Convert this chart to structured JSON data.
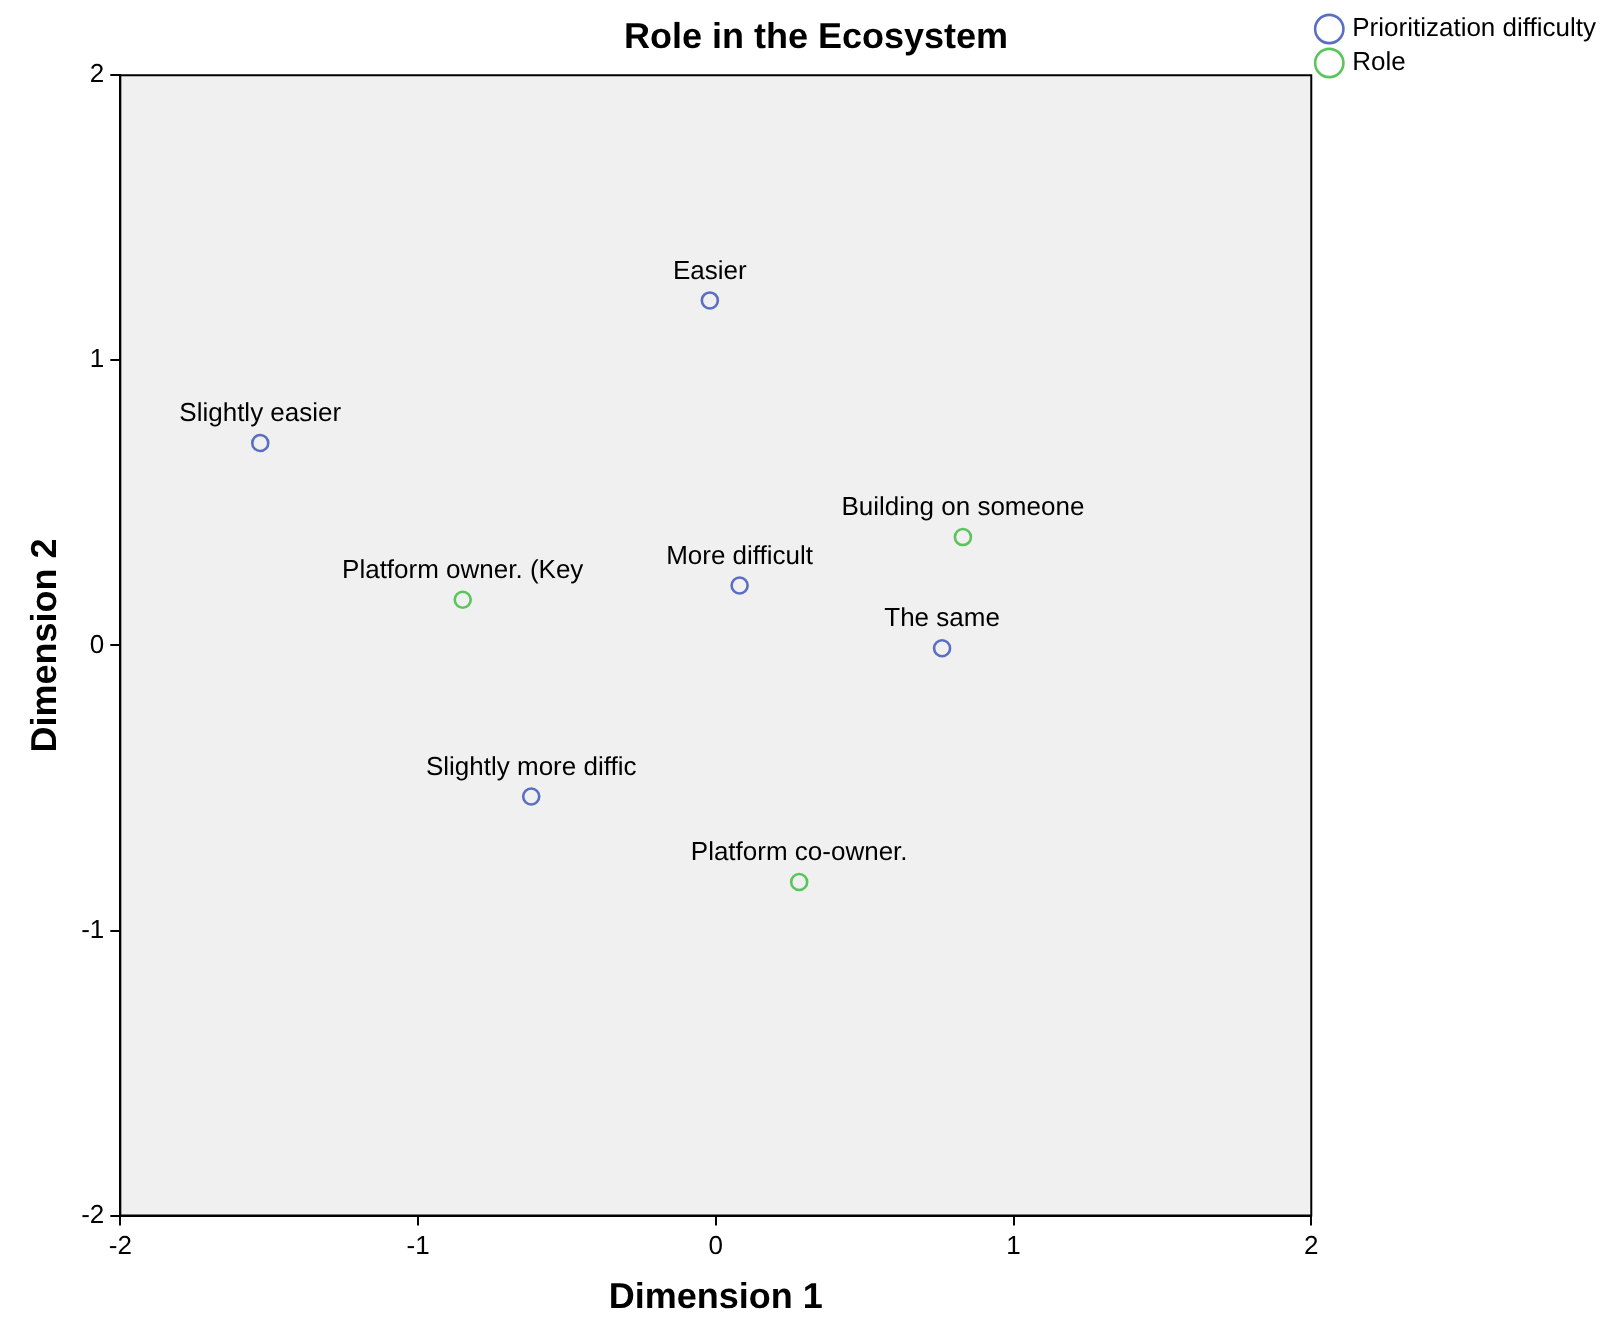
{
  "chart_data": {
    "type": "scatter",
    "title": "Role in the Ecosystem",
    "xlabel": "Dimension 1",
    "ylabel": "Dimension 2",
    "series": [
      {
        "name": "Prioritization difficulty",
        "color": "#5a6fc4",
        "x": [
          -0.02,
          -1.53,
          0.08,
          0.76,
          -0.62
        ],
        "values": [
          1.21,
          0.71,
          0.21,
          -0.01,
          -0.53
        ]
      },
      {
        "name": "Role",
        "color": "#5cc45c",
        "x": [
          0.83,
          -0.85,
          0.28
        ],
        "values": [
          0.38,
          0.16,
          -0.83
        ]
      }
    ],
    "annotations": [
      {
        "text": "Easier",
        "x": -0.02,
        "y": 1.21
      },
      {
        "text": "Slightly easier",
        "x": -1.53,
        "y": 0.71
      },
      {
        "text": "More difficult",
        "x": 0.08,
        "y": 0.21
      },
      {
        "text": "The same",
        "x": 0.76,
        "y": -0.01
      },
      {
        "text": "Slightly more diffic",
        "x": -0.62,
        "y": -0.53
      },
      {
        "text": "Building on someone",
        "x": 0.83,
        "y": 0.38
      },
      {
        "text": "Platform owner. (Key",
        "x": -0.85,
        "y": 0.16
      },
      {
        "text": "Platform co-owner.",
        "x": 0.28,
        "y": -0.83
      }
    ],
    "xlim": [
      -2,
      2
    ],
    "ylim": [
      -2,
      2
    ],
    "xticks": [
      -2,
      -1,
      0,
      1,
      2
    ],
    "yticks": [
      -2,
      -1,
      0,
      1,
      2
    ],
    "grid": false,
    "legend": "top right",
    "marker": "circle"
  }
}
